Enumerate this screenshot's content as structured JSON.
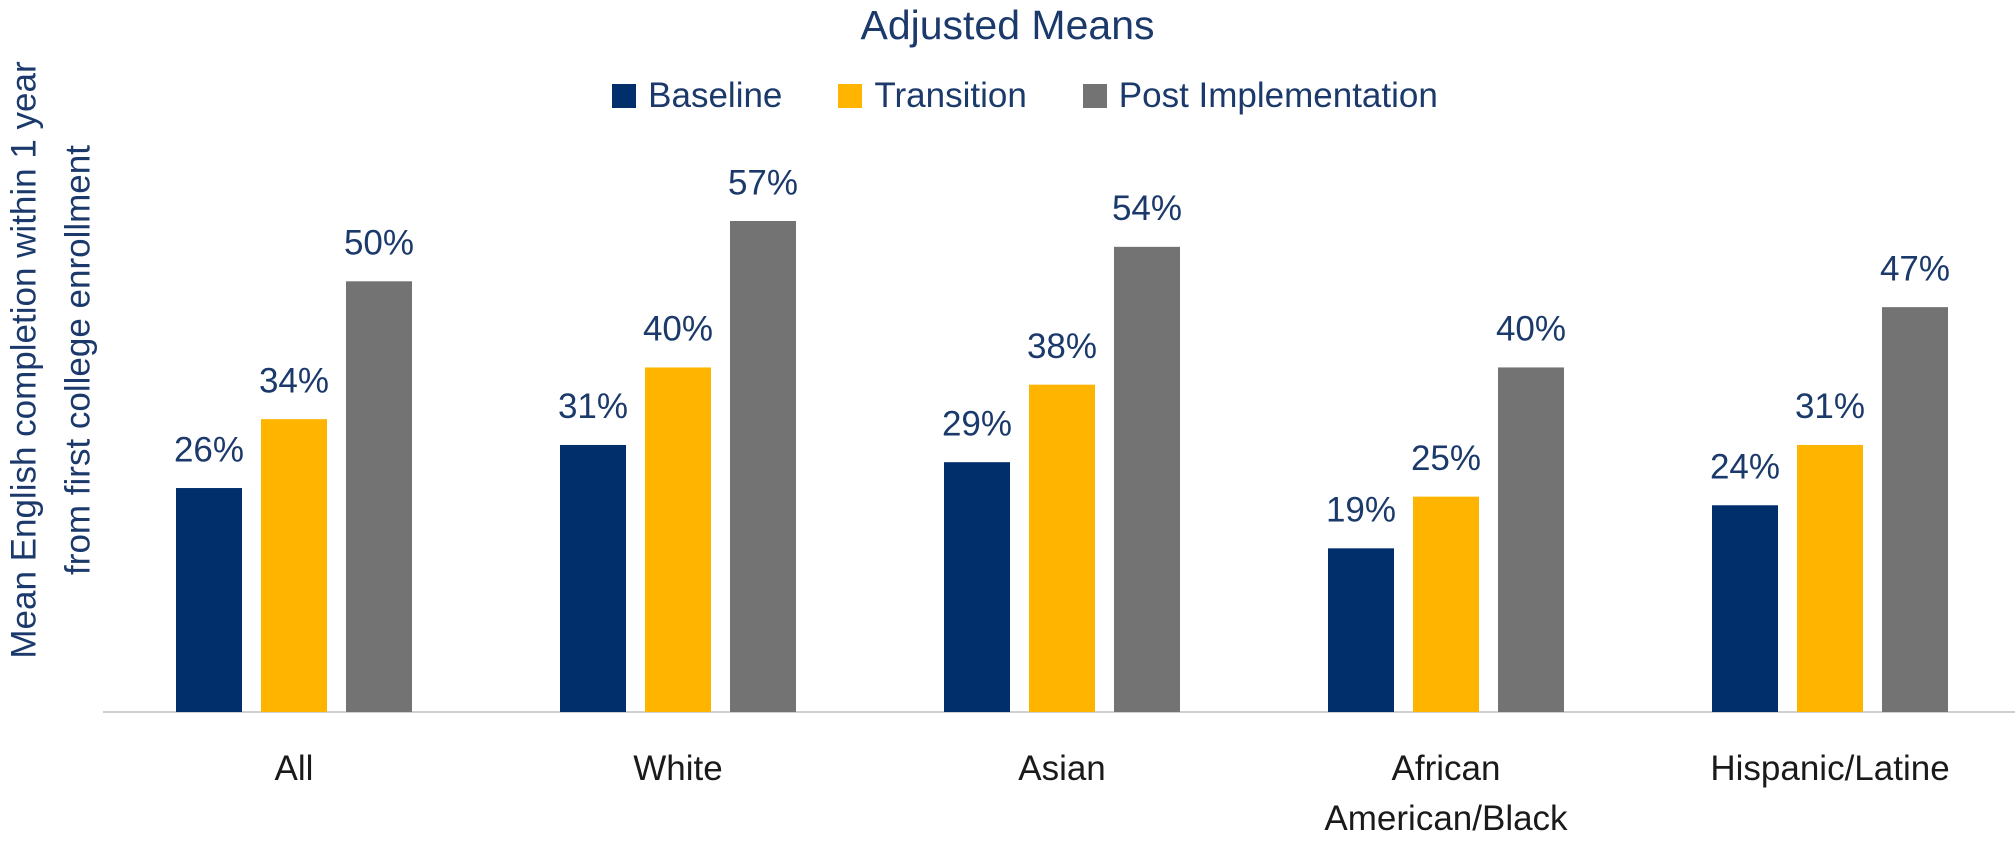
{
  "chart_data": {
    "type": "bar",
    "title": "Adjusted Means",
    "y_label": [
      "Mean English completion within 1 year",
      "from first college enrollment"
    ],
    "categories": [
      "All",
      "White",
      "Asian",
      "African American/Black",
      "Hispanic/Latine"
    ],
    "series": [
      {
        "name": "Baseline",
        "color": "#002f6c",
        "values": [
          26,
          31,
          29,
          19,
          24
        ],
        "value_labels": [
          "26%",
          "31%",
          "29%",
          "19%",
          "24%"
        ]
      },
      {
        "name": "Transition",
        "color": "#ffb500",
        "values": [
          34,
          40,
          38,
          25,
          31
        ],
        "value_labels": [
          "34%",
          "40%",
          "38%",
          "25%",
          "31%"
        ]
      },
      {
        "name": "Post Implementation",
        "color": "#737373",
        "values": [
          50,
          57,
          54,
          40,
          47
        ],
        "value_labels": [
          "50%",
          "57%",
          "54%",
          "40%",
          "47%"
        ]
      }
    ],
    "legend": "top"
  }
}
